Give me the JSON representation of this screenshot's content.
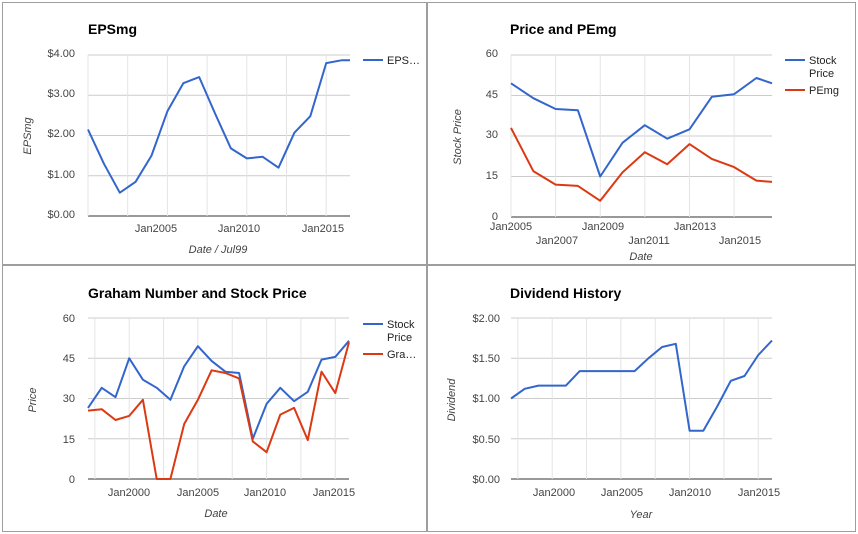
{
  "chart_data": [
    {
      "type": "line",
      "title": "EPSmg",
      "xlabel": "Date / Jul99",
      "ylabel": "EPSmg",
      "x_ticks": [
        "Jan2005",
        "Jan2010",
        "Jan2015"
      ],
      "y_ticks": [
        "$0.00",
        "$1.00",
        "$2.00",
        "$3.00",
        "$4.00"
      ],
      "ylim": [
        0,
        4
      ],
      "x": [
        2000,
        2001,
        2002,
        2003,
        2004,
        2005,
        2006,
        2007,
        2008,
        2009,
        2010,
        2011,
        2012,
        2013,
        2014,
        2015,
        2016,
        2016.5
      ],
      "series": [
        {
          "name": "EPS…",
          "color": "#3366cc",
          "values": [
            2.15,
            1.3,
            0.58,
            0.85,
            1.5,
            2.6,
            3.3,
            3.45,
            2.55,
            1.68,
            1.43,
            1.47,
            1.2,
            2.07,
            2.48,
            3.8,
            3.87,
            3.87
          ]
        }
      ],
      "legend_position": "right",
      "grid": true
    },
    {
      "type": "line",
      "title": "Price and PEmg",
      "xlabel": "Date",
      "ylabel": "Stock Price",
      "x_ticks_top_row": [
        "Jan2005",
        "Jan2009",
        "Jan2013"
      ],
      "x_ticks_bottom_row": [
        "Jan2007",
        "Jan2011",
        "Jan2015"
      ],
      "y_ticks": [
        "0",
        "15",
        "30",
        "45",
        "60"
      ],
      "ylim": [
        0,
        60
      ],
      "x": [
        2005,
        2006,
        2007,
        2008,
        2009,
        2010,
        2011,
        2012,
        2013,
        2014,
        2015,
        2016,
        2016.7
      ],
      "series": [
        {
          "name": "Stock Price",
          "color": "#3366cc",
          "values": [
            49.5,
            44,
            40,
            39.5,
            15,
            27.5,
            34,
            29,
            32.5,
            44.5,
            45.5,
            51.5,
            49.5
          ]
        },
        {
          "name": "PEmg",
          "color": "#dc3912",
          "values": [
            33,
            17,
            12,
            11.5,
            6,
            16.5,
            24,
            19.5,
            27,
            21.5,
            18.5,
            13.5,
            13
          ]
        }
      ],
      "legend_position": "right",
      "grid": true
    },
    {
      "type": "line",
      "title": "Graham Number and Stock Price",
      "xlabel": "Date",
      "ylabel": "Price",
      "x_ticks": [
        "Jan2000",
        "Jan2005",
        "Jan2010",
        "Jan2015"
      ],
      "y_ticks": [
        "0",
        "15",
        "30",
        "45",
        "60"
      ],
      "ylim": [
        0,
        60
      ],
      "x": [
        1997,
        1998,
        1999,
        2000,
        2001,
        2002,
        2003,
        2004,
        2005,
        2006,
        2007,
        2008,
        2009,
        2010,
        2011,
        2012,
        2013,
        2014,
        2015,
        2016
      ],
      "series": [
        {
          "name": "Stock Price",
          "color": "#3366cc",
          "values": [
            26.5,
            34,
            30.5,
            45,
            37,
            34,
            29.5,
            42,
            49.5,
            44,
            40,
            39.5,
            15,
            28,
            34,
            29,
            32.5,
            44.5,
            45.5,
            51.5
          ]
        },
        {
          "name": "Gra…",
          "color": "#dc3912",
          "values": [
            25.5,
            26,
            22,
            23.5,
            29.5,
            0,
            0,
            20.5,
            29.5,
            40.5,
            39.5,
            37.5,
            14,
            10,
            24,
            26.5,
            14.5,
            40,
            32,
            51
          ]
        }
      ],
      "legend_position": "right",
      "grid": true
    },
    {
      "type": "line",
      "title": "Dividend History",
      "xlabel": "Year",
      "ylabel": "Dividend",
      "x_ticks": [
        "Jan2000",
        "Jan2005",
        "Jan2010",
        "Jan2015"
      ],
      "y_ticks": [
        "$0.00",
        "$0.50",
        "$1.00",
        "$1.50",
        "$2.00"
      ],
      "ylim": [
        0,
        2
      ],
      "x": [
        1997,
        1998,
        1999,
        2000,
        2001,
        2002,
        2003,
        2004,
        2005,
        2006,
        2007,
        2008,
        2009,
        2010,
        2011,
        2012,
        2013,
        2014,
        2015,
        2016
      ],
      "series": [
        {
          "name": "",
          "color": "#3366cc",
          "values": [
            1.0,
            1.12,
            1.16,
            1.16,
            1.16,
            1.34,
            1.34,
            1.34,
            1.34,
            1.34,
            1.5,
            1.64,
            1.68,
            0.6,
            0.6,
            0.9,
            1.22,
            1.28,
            1.54,
            1.72
          ]
        }
      ],
      "legend_position": "none",
      "grid": true
    }
  ]
}
